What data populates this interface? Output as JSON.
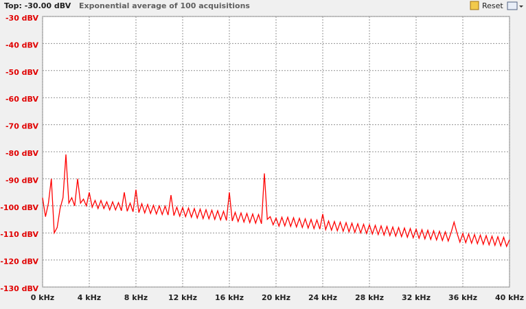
{
  "chart_data": {
    "type": "line",
    "title": "Top: -30.00 dBV",
    "subtitle": "Exponential average of 100 acquisitions",
    "reset_button": "Reset",
    "x": [
      0,
      0.25,
      0.5,
      0.75,
      1,
      1.25,
      1.5,
      1.75,
      2,
      2.25,
      2.5,
      2.75,
      3,
      3.25,
      3.5,
      3.75,
      4,
      4.25,
      4.5,
      4.75,
      5,
      5.25,
      5.5,
      5.75,
      6,
      6.25,
      6.5,
      6.75,
      7,
      7.25,
      7.5,
      7.75,
      8,
      8.25,
      8.5,
      8.75,
      9,
      9.25,
      9.5,
      9.75,
      10,
      10.25,
      10.5,
      10.75,
      11,
      11.25,
      11.5,
      11.75,
      12,
      12.25,
      12.5,
      12.75,
      13,
      13.25,
      13.5,
      13.75,
      14,
      14.25,
      14.5,
      14.75,
      15,
      15.25,
      15.5,
      15.75,
      16,
      16.25,
      16.5,
      16.75,
      17,
      17.25,
      17.5,
      17.75,
      18,
      18.25,
      18.5,
      18.75,
      19,
      19.25,
      19.5,
      19.75,
      20,
      20.25,
      20.5,
      20.75,
      21,
      21.25,
      21.5,
      21.75,
      22,
      22.25,
      22.5,
      22.75,
      23,
      23.25,
      23.5,
      23.75,
      24,
      24.25,
      24.5,
      24.75,
      25,
      25.25,
      25.5,
      25.75,
      26,
      26.25,
      26.5,
      26.75,
      27,
      27.25,
      27.5,
      27.75,
      28,
      28.25,
      28.5,
      28.75,
      29,
      29.25,
      29.5,
      29.75,
      30,
      30.25,
      30.5,
      30.75,
      31,
      31.25,
      31.5,
      31.75,
      32,
      32.25,
      32.5,
      32.75,
      33,
      33.25,
      33.5,
      33.75,
      34,
      34.25,
      34.5,
      34.75,
      35,
      35.25,
      35.5,
      35.75,
      36,
      36.25,
      36.5,
      36.75,
      37,
      37.25,
      37.5,
      37.75,
      38,
      38.25,
      38.5,
      38.75,
      39,
      39.25,
      39.5,
      39.75,
      40
    ],
    "series": [
      {
        "color": "#ff0000",
        "values": [
          -97,
          -104,
          -99,
          -90,
          -110,
          -108,
          -101,
          -97,
          -81,
          -99,
          -97,
          -100,
          -90,
          -99,
          -97.5,
          -100,
          -95,
          -100.5,
          -98,
          -101,
          -98,
          -101,
          -98.5,
          -101.5,
          -98.5,
          -101.5,
          -98.8,
          -101.8,
          -95,
          -102,
          -99,
          -102.2,
          -94,
          -102.5,
          -99.2,
          -102.6,
          -99.5,
          -102.8,
          -99.8,
          -103,
          -100,
          -103.2,
          -100.1,
          -103.4,
          -96,
          -103.6,
          -100.5,
          -103.8,
          -100.6,
          -104,
          -100.8,
          -104.2,
          -101,
          -104.5,
          -101.2,
          -104.7,
          -101.4,
          -104.8,
          -101.6,
          -105,
          -101.8,
          -105.2,
          -102,
          -105.4,
          -95,
          -105.6,
          -102.4,
          -105.8,
          -102.6,
          -106,
          -102.8,
          -106.2,
          -103,
          -106.4,
          -103.2,
          -106.6,
          -88,
          -105,
          -104,
          -107,
          -104.5,
          -107.5,
          -104.2,
          -107.4,
          -104.2,
          -107.6,
          -104.4,
          -107.8,
          -104.6,
          -108,
          -104.8,
          -108.2,
          -105,
          -108.4,
          -105.2,
          -108.6,
          -103,
          -108.8,
          -105.6,
          -109,
          -105.8,
          -109.2,
          -106,
          -109.4,
          -106.2,
          -109.6,
          -106.4,
          -109.8,
          -106.6,
          -110,
          -106.8,
          -110.2,
          -107,
          -110.4,
          -107.2,
          -110.6,
          -107.4,
          -110.8,
          -107.6,
          -111,
          -107.8,
          -111.2,
          -108,
          -111.4,
          -108.2,
          -111.6,
          -108.4,
          -111.8,
          -108.6,
          -112,
          -108.8,
          -112.2,
          -109,
          -112.4,
          -109.2,
          -112.6,
          -109.4,
          -112.8,
          -109.6,
          -113,
          -109.8,
          -106,
          -110,
          -113.4,
          -110.2,
          -113.6,
          -110.4,
          -113.8,
          -110.6,
          -114,
          -110.8,
          -114.2,
          -111,
          -114.4,
          -111.2,
          -114.6,
          -111.4,
          -114.8,
          -111.6,
          -115,
          -112.5
        ]
      }
    ],
    "xlim": [
      0,
      40
    ],
    "xticks": [
      {
        "value": 0,
        "label": "0 kHz"
      },
      {
        "value": 4,
        "label": "4 kHz"
      },
      {
        "value": 8,
        "label": "8 kHz"
      },
      {
        "value": 12,
        "label": "12 kHz"
      },
      {
        "value": 16,
        "label": "16 kHz"
      },
      {
        "value": 20,
        "label": "20 kHz"
      },
      {
        "value": 24,
        "label": "24 kHz"
      },
      {
        "value": 28,
        "label": "28 kHz"
      },
      {
        "value": 32,
        "label": "32 kHz"
      },
      {
        "value": 36,
        "label": "36 kHz"
      },
      {
        "value": 40,
        "label": "40 kHz"
      }
    ],
    "ylim": [
      -130,
      -30
    ],
    "yticks": [
      {
        "value": -30,
        "label": "-30 dBV"
      },
      {
        "value": -40,
        "label": "-40 dBV"
      },
      {
        "value": -50,
        "label": "-50 dBV"
      },
      {
        "value": -60,
        "label": "-60 dBV"
      },
      {
        "value": -70,
        "label": "-70 dBV"
      },
      {
        "value": -80,
        "label": "-80 dBV"
      },
      {
        "value": -90,
        "label": "-90 dBV"
      },
      {
        "value": -100,
        "label": "-100 dBV"
      },
      {
        "value": -110,
        "label": "-110 dBV"
      },
      {
        "value": -120,
        "label": "-120 dBV"
      },
      {
        "value": -130,
        "label": "-130 dBV"
      }
    ],
    "grid": true
  }
}
